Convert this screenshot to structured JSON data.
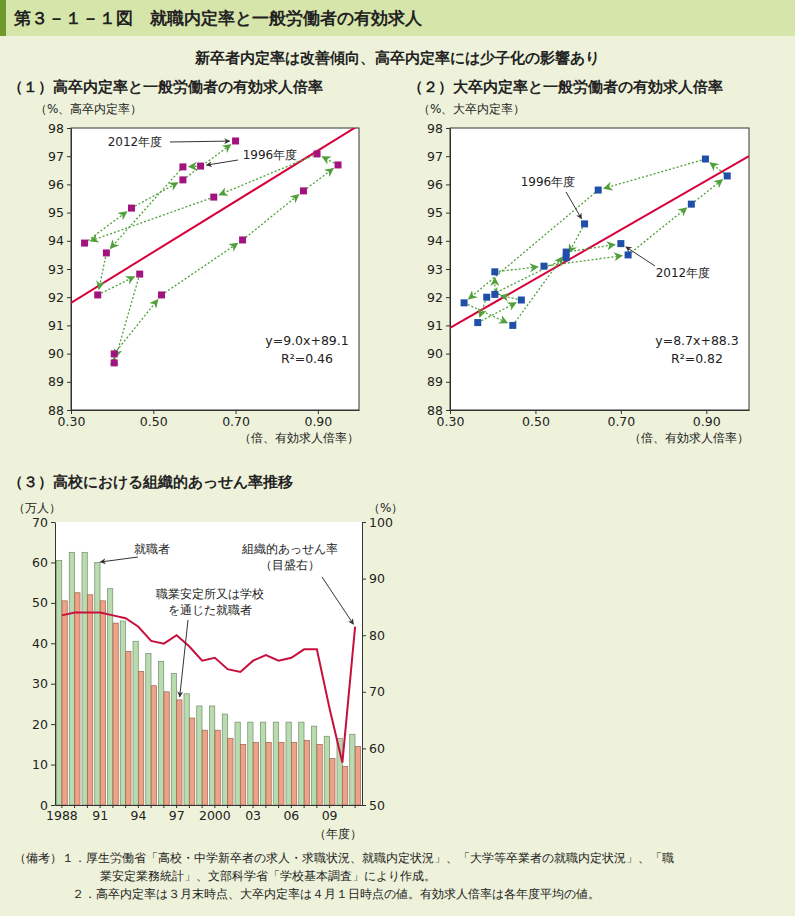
{
  "header": {
    "title": "第３－１－１図　就職内定率と一般労働者の有効求人",
    "subtitle": "新卒者内定率は改善傾向、高卒内定率には少子化の影響あり"
  },
  "chart_data": [
    {
      "type": "scatter",
      "title": "（１）高卒内定率と一般労働者の有効求人倍率",
      "x_label": "（倍、有効求人倍率）",
      "y_label": "（%、高卒内定率）",
      "xlim": [
        0.3,
        1.0
      ],
      "xticks": [
        {
          "value": 0.3,
          "label": "0.30"
        },
        {
          "value": 0.5,
          "label": "0.50"
        },
        {
          "value": 0.7,
          "label": "0.70"
        },
        {
          "value": 0.9,
          "label": "0.90"
        }
      ],
      "ylim": [
        88,
        98
      ],
      "yticks": [
        88,
        89,
        90,
        91,
        92,
        93,
        94,
        95,
        96,
        97,
        98
      ],
      "series": [
        {
          "type": "scatter",
          "color": "#a3137f",
          "marker": "square",
          "line_style": "dotted",
          "x": [
            0.615,
            0.572,
            0.386,
            0.365,
            0.467,
            0.405,
            0.405,
            0.52,
            0.717,
            0.865,
            0.949,
            0.898,
            0.647,
            0.333,
            0.447,
            0.572,
            0.7
          ],
          "values": [
            96.65,
            96.62,
            93.57,
            92.08,
            92.82,
            89.67,
            89.99,
            92.08,
            94.03,
            95.77,
            96.69,
            97.08,
            95.55,
            93.92,
            95.16,
            96.16,
            97.54
          ]
        },
        {
          "type": "line",
          "color": "#d7003a",
          "slope": 9.0,
          "intercept": 89.1,
          "equation": "y=9.0x+89.1",
          "r2": "R²=0.46"
        }
      ],
      "annotations": [
        {
          "text": "1996年度",
          "point": 0
        },
        {
          "text": "2012年度",
          "point": 16
        }
      ]
    },
    {
      "type": "scatter",
      "title": "（２）大卒内定率と一般労働者の有効求人倍率",
      "x_label": "（倍、有効求人倍率）",
      "y_label": "（%、大卒内定率）",
      "xlim": [
        0.3,
        1.0
      ],
      "xticks": [
        {
          "value": 0.3,
          "label": "0.30"
        },
        {
          "value": 0.5,
          "label": "0.50"
        },
        {
          "value": 0.7,
          "label": "0.70"
        },
        {
          "value": 0.9,
          "label": "0.90"
        }
      ],
      "ylim": [
        88,
        98
      ],
      "yticks": [
        88,
        89,
        90,
        91,
        92,
        93,
        94,
        95,
        96,
        97,
        98
      ],
      "series": [
        {
          "type": "scatter",
          "color": "#1f4fa8",
          "marker": "square",
          "line_style": "dotted",
          "x": [
            0.615,
            0.572,
            0.386,
            0.365,
            0.467,
            0.405,
            0.405,
            0.52,
            0.717,
            0.865,
            0.949,
            0.898,
            0.647,
            0.333,
            0.447,
            0.572,
            0.7
          ],
          "values": [
            94.6,
            93.4,
            92.0,
            91.1,
            91.9,
            92.1,
            92.9,
            93.1,
            93.5,
            95.3,
            96.3,
            96.9,
            95.8,
            91.8,
            91.0,
            93.6,
            93.9
          ]
        },
        {
          "type": "line",
          "color": "#d7003a",
          "slope": 8.7,
          "intercept": 88.3,
          "equation": "y=8.7x+88.3",
          "r2": "R²=0.82"
        }
      ],
      "annotations": [
        {
          "text": "1996年度",
          "point": 0
        },
        {
          "text": "2012年度",
          "point": 16
        }
      ]
    },
    {
      "type": "bar",
      "title": "（３）高校における組織的あっせん率推移",
      "x_label": "（年度）",
      "y_label": "（万人）",
      "y2_label": "（%）",
      "categories": [
        "1988",
        null,
        null,
        "91",
        null,
        null,
        "94",
        null,
        null,
        "97",
        null,
        null,
        "2000",
        null,
        null,
        "03",
        null,
        null,
        "06",
        null,
        null,
        "09",
        null,
        null
      ],
      "ylim": [
        0,
        70
      ],
      "yticks": [
        0,
        10,
        20,
        30,
        40,
        50,
        60,
        70
      ],
      "y2lim": [
        50,
        100
      ],
      "y2ticks": [
        50,
        60,
        70,
        80,
        90,
        100
      ],
      "series": [
        {
          "name": "就職者",
          "type": "bar",
          "color": "#b8dcae",
          "values": [
            60.5,
            62.5,
            62.5,
            60.0,
            53.5,
            45.5,
            40.5,
            37.5,
            35.5,
            32.5,
            27.5,
            24.5,
            24.5,
            22.5,
            20.5,
            20.5,
            20.5,
            20.5,
            20.5,
            20.5,
            19.5,
            17.0,
            16.5,
            17.5
          ]
        },
        {
          "name": "職業安定所又は学校\nを通じた就職者",
          "type": "bar",
          "color": "#f0a286",
          "values": [
            50.5,
            52.5,
            52.0,
            50.5,
            45.0,
            38.0,
            33.0,
            29.5,
            28.0,
            26.0,
            21.5,
            18.5,
            18.5,
            16.5,
            15.0,
            15.5,
            15.5,
            15.5,
            15.5,
            16.0,
            15.0,
            11.5,
            9.5,
            14.5
          ]
        },
        {
          "name": "組織的あっせん率\n（目盛右）",
          "type": "line",
          "axis": "y2",
          "color": "#c8103e",
          "values": [
            83.5,
            84.0,
            84.0,
            84.0,
            83.5,
            83.0,
            81.5,
            79.0,
            78.5,
            80.0,
            78.0,
            75.5,
            76.0,
            74.0,
            73.5,
            75.5,
            76.5,
            75.5,
            76.0,
            77.5,
            77.5,
            67.0,
            57.5,
            81.5
          ]
        }
      ]
    }
  ],
  "notes": [
    "（備考）１．厚生労働省「高校・中学新卒者の求人・求職状況、就職内定状況」、「大学等卒業者の就職内定状況」、「職",
    "業安定業務統計」、文部科学省「学校基本調査」により作成。",
    "２．高卒内定率は３月末時点、大卒内定率は４月１日時点の値。有効求人倍率は各年度平均の値。"
  ]
}
